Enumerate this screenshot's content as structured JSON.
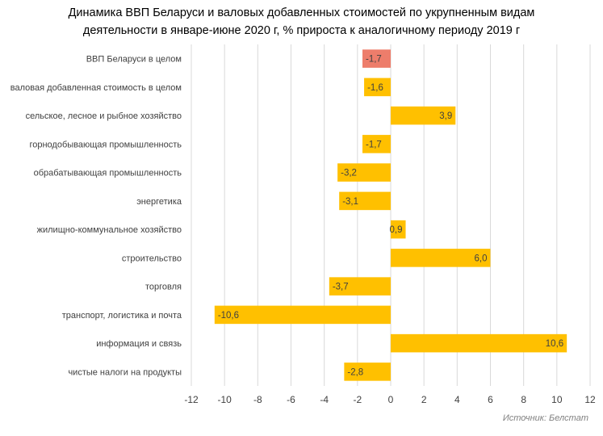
{
  "chart_data": {
    "type": "bar",
    "orientation": "horizontal",
    "title_line1": "Динамика ВВП Беларуси и валовых добавленных стоимостей по укрупненным видам",
    "title_line2": "деятельности в январе-июне 2020 г, % прироста к аналогичному периоду 2019 г",
    "categories": [
      "ВВП Беларуси в целом",
      "валовая добавленная стоимость в целом",
      "сельское, лесное и рыбное хозяйство",
      "горнодобывающая промышленность",
      "обрабатывающая промышленность",
      "энергетика",
      "жилищно-коммунальное хозяйство",
      "строительство",
      "торговля",
      "транспорт, логистика и почта",
      "информация и связь",
      "чистые налоги на продукты"
    ],
    "values": [
      -1.7,
      -1.6,
      3.9,
      -1.7,
      -3.2,
      -3.1,
      0.9,
      6.0,
      -3.7,
      -10.6,
      10.6,
      -2.8
    ],
    "value_labels": [
      "-1,7",
      "-1,6",
      "3,9",
      "-1,7",
      "-3,2",
      "-3,1",
      "0,9",
      "6,0",
      "-3,7",
      "-10,6",
      "10,6",
      "-2,8"
    ],
    "highlight_index": 0,
    "xlim": [
      -12,
      12
    ],
    "xticks": [
      -12,
      -10,
      -8,
      -6,
      -4,
      -2,
      0,
      2,
      4,
      6,
      8,
      10,
      12
    ],
    "xtick_labels": [
      "-12",
      "-10",
      "-8",
      "-6",
      "-4",
      "-2",
      "0",
      "2",
      "4",
      "6",
      "8",
      "10",
      "12"
    ],
    "grid": "vertical",
    "legend": "none",
    "colors": {
      "bar": "#FFC000",
      "highlight": "#ED7D6B",
      "grid": "#D9D9D9",
      "text": "#404040"
    }
  },
  "source": "Источник: Белстат"
}
